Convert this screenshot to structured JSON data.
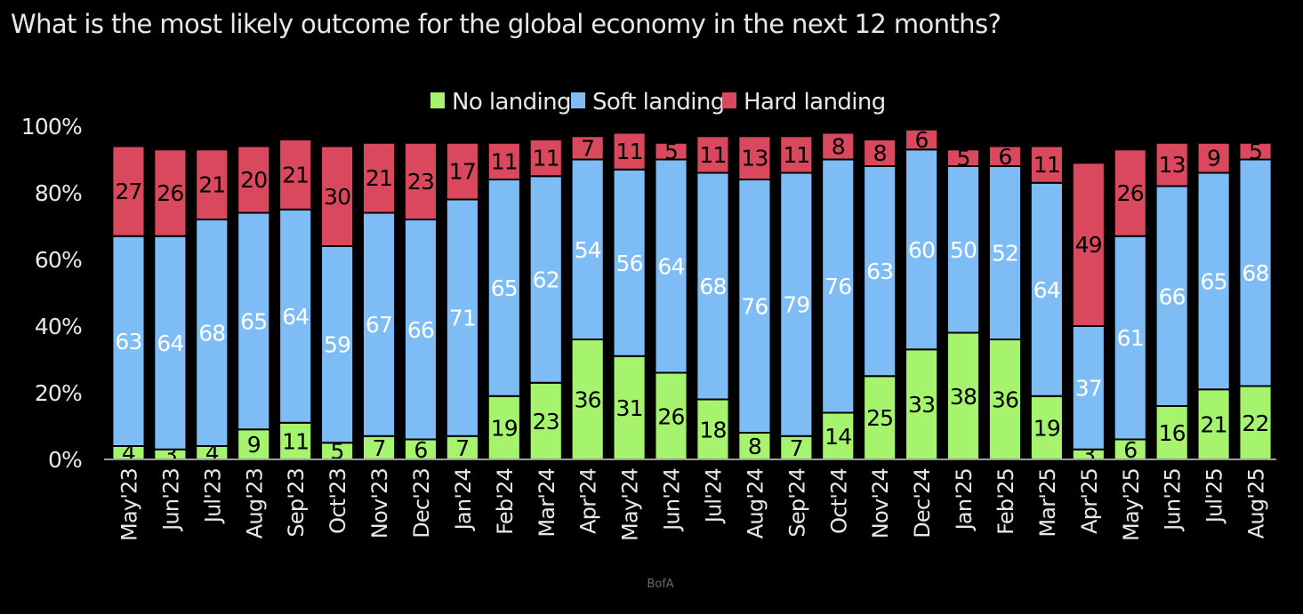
{
  "title": "What is the most likely outcome for the global economy in the next 12 months?",
  "source": "BofA",
  "colors": {
    "No landing": "#a6f36e",
    "Soft landing": "#7dbcf5",
    "Hard landing": "#d9485d",
    "background": "#000000",
    "text": "#e8e8e8"
  },
  "chart_data": {
    "type": "bar",
    "stacked": true,
    "categories": [
      "May'23",
      "Jun'23",
      "Jul'23",
      "Aug'23",
      "Sep'23",
      "Oct'23",
      "Nov'23",
      "Dec'23",
      "Jan'24",
      "Feb'24",
      "Mar'24",
      "Apr'24",
      "May'24",
      "Jun'24",
      "Jul'24",
      "Aug'24",
      "Sep'24",
      "Oct'24",
      "Nov'24",
      "Dec'24",
      "Jan'25",
      "Feb'25",
      "Mar'25",
      "Apr'25",
      "May'25",
      "Jun'25",
      "Jul'25",
      "Aug'25"
    ],
    "series": [
      {
        "name": "No landing",
        "values": [
          4,
          3,
          4,
          9,
          11,
          5,
          7,
          6,
          7,
          19,
          23,
          36,
          31,
          26,
          18,
          8,
          7,
          14,
          25,
          33,
          38,
          36,
          19,
          3,
          6,
          16,
          21,
          22
        ]
      },
      {
        "name": "Soft landing",
        "values": [
          63,
          64,
          68,
          65,
          64,
          59,
          67,
          66,
          71,
          65,
          62,
          54,
          56,
          64,
          68,
          76,
          79,
          76,
          63,
          60,
          50,
          52,
          64,
          37,
          61,
          66,
          65,
          68
        ]
      },
      {
        "name": "Hard landing",
        "values": [
          27,
          26,
          21,
          20,
          21,
          30,
          21,
          23,
          17,
          11,
          11,
          7,
          11,
          5,
          11,
          13,
          11,
          8,
          8,
          6,
          5,
          6,
          11,
          49,
          26,
          13,
          9,
          5
        ]
      }
    ],
    "yticks": [
      "0%",
      "20%",
      "40%",
      "60%",
      "80%",
      "100%"
    ],
    "ylim": [
      0,
      100
    ],
    "legend_position": "top-center",
    "grid": false
  }
}
